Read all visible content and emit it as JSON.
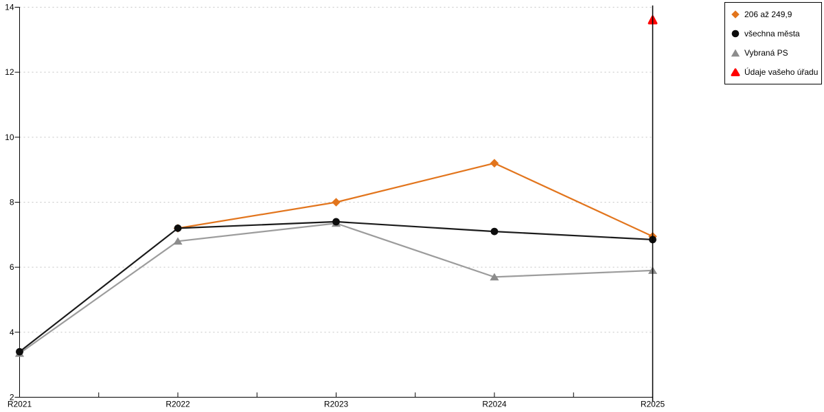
{
  "chart_data": {
    "type": "line",
    "title": "",
    "xlabel": "",
    "ylabel": "",
    "categories": [
      "R2021",
      "R2022",
      "R2023",
      "R2024",
      "R2025"
    ],
    "ylim": [
      2,
      14
    ],
    "yticks": [
      2,
      4,
      6,
      8,
      10,
      12,
      14
    ],
    "grid": true,
    "gridline_color": "#c4c4c4",
    "axis_color": "#000000",
    "background_color": "#ffffff",
    "highlight_category": "R2025",
    "legend_position": "top-right",
    "series": [
      {
        "name": "206 až 249,9",
        "marker": "diamond",
        "color": "#e2751d",
        "line_color": "#e2751d",
        "values": [
          null,
          7.2,
          8.0,
          9.2,
          6.95
        ]
      },
      {
        "name": "všechna města",
        "marker": "circle",
        "color": "#0d0d0d",
        "line_color": "#1a1a1a",
        "values": [
          3.4,
          7.2,
          7.4,
          7.1,
          6.85
        ]
      },
      {
        "name": "Vybraná PS",
        "marker": "triangle",
        "color": "#8c8c8c",
        "line_color": "#9c9c9c",
        "values": [
          3.35,
          6.8,
          7.35,
          5.7,
          5.9
        ]
      },
      {
        "name": "Údaje vašeho úřadu",
        "marker": "triangle-round",
        "color": "#ff0000",
        "line_color": "#ff0000",
        "values": [
          null,
          null,
          null,
          null,
          13.6
        ]
      }
    ]
  }
}
